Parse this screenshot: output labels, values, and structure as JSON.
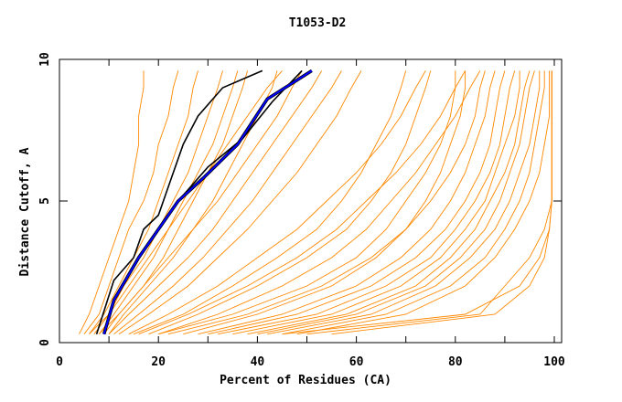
{
  "chart_data": {
    "type": "line",
    "title": "T1053-D2",
    "xlabel": "Percent of Residues (CA)",
    "ylabel": "Distance Cutoff, A",
    "xlim": [
      0,
      100
    ],
    "ylim": [
      0,
      10
    ],
    "x_ticks": [
      "0",
      "20",
      "40",
      "60",
      "80",
      "100"
    ],
    "y_ticks": [
      "0",
      "5",
      "10"
    ],
    "grid": false,
    "colors": {
      "other_models": "#ff8800",
      "highlight_black": "#000000",
      "highlight_blue": "#0000ff"
    },
    "y_levels": [
      0.3,
      1,
      2,
      3,
      4,
      5,
      6,
      7,
      8,
      9,
      9.6
    ],
    "orange_series_x": [
      [
        4,
        6,
        8,
        10,
        12,
        14,
        15,
        16,
        16,
        17,
        17
      ],
      [
        5,
        8,
        10,
        12,
        14,
        17,
        19,
        20,
        22,
        23,
        24
      ],
      [
        6,
        9,
        12,
        15,
        18,
        20,
        22,
        24,
        26,
        27,
        28
      ],
      [
        7,
        10,
        13,
        17,
        20,
        23,
        26,
        28,
        30,
        32,
        33
      ],
      [
        8,
        11,
        15,
        19,
        22,
        25,
        28,
        31,
        33,
        35,
        36
      ],
      [
        9,
        12,
        17,
        21,
        24,
        27,
        30,
        33,
        35,
        37,
        38
      ],
      [
        10,
        13,
        18,
        23,
        27,
        31,
        34,
        37,
        40,
        43,
        44
      ],
      [
        6,
        10,
        14,
        18,
        22,
        26,
        30,
        34,
        38,
        42,
        45
      ],
      [
        8,
        12,
        17,
        22,
        27,
        32,
        36,
        40,
        44,
        47,
        49
      ],
      [
        10,
        14,
        20,
        26,
        31,
        35,
        39,
        43,
        47,
        51,
        53
      ],
      [
        11,
        16,
        23,
        29,
        34,
        39,
        43,
        47,
        51,
        55,
        57
      ],
      [
        12,
        18,
        26,
        32,
        38,
        43,
        48,
        52,
        56,
        59,
        61
      ],
      [
        15,
        25,
        35,
        44,
        52,
        57,
        61,
        64,
        67,
        69,
        70
      ],
      [
        14,
        22,
        32,
        40,
        48,
        54,
        60,
        65,
        69,
        72,
        74
      ],
      [
        18,
        28,
        40,
        50,
        58,
        63,
        67,
        70,
        72,
        74,
        75
      ],
      [
        16,
        26,
        38,
        48,
        56,
        62,
        68,
        73,
        77,
        80,
        82
      ],
      [
        20,
        32,
        45,
        55,
        62,
        67,
        72,
        76,
        80,
        83,
        85
      ],
      [
        20,
        35,
        50,
        60,
        66,
        70,
        74,
        77,
        79,
        80,
        80
      ],
      [
        25,
        40,
        55,
        64,
        70,
        74,
        77,
        79,
        81,
        82,
        82
      ],
      [
        22,
        38,
        53,
        63,
        70,
        75,
        79,
        82,
        84,
        85,
        86
      ],
      [
        28,
        45,
        60,
        69,
        75,
        79,
        82,
        84,
        86,
        87,
        88
      ],
      [
        30,
        48,
        63,
        72,
        78,
        82,
        85,
        87,
        88,
        89,
        90
      ],
      [
        32,
        52,
        66,
        75,
        80,
        84,
        87,
        89,
        90,
        91,
        92
      ],
      [
        35,
        55,
        69,
        77,
        82,
        86,
        88,
        90,
        92,
        93,
        93
      ],
      [
        38,
        58,
        72,
        79,
        84,
        87,
        90,
        92,
        93,
        94,
        95
      ],
      [
        40,
        60,
        74,
        81,
        86,
        89,
        91,
        93,
        94,
        95,
        96
      ],
      [
        42,
        63,
        76,
        83,
        88,
        91,
        93,
        95,
        96,
        97,
        97
      ],
      [
        45,
        66,
        79,
        86,
        90,
        93,
        95,
        96,
        97,
        98,
        98
      ],
      [
        48,
        70,
        82,
        88,
        92,
        95,
        97,
        98,
        99,
        99,
        99
      ],
      [
        45,
        82,
        93,
        97,
        99,
        99.5,
        99.5,
        99.5,
        99.5,
        99.5,
        99.5
      ],
      [
        55,
        88,
        95,
        98,
        99,
        99.5,
        99.5,
        99.5,
        99.5,
        99.5,
        99.5
      ],
      [
        50,
        85,
        90,
        95,
        98,
        99.5,
        99.5,
        99.5,
        99.5,
        99.5,
        99.5
      ]
    ],
    "black_series": [
      [
        [
          7.5,
          0.3
        ],
        [
          11,
          2.2
        ],
        [
          15,
          3
        ],
        [
          17,
          4
        ],
        [
          20,
          4.5
        ],
        [
          22,
          5.5
        ],
        [
          25,
          7
        ],
        [
          28,
          8
        ],
        [
          33,
          9
        ],
        [
          41,
          9.6
        ]
      ],
      [
        [
          9,
          0.3
        ],
        [
          11,
          1.5
        ],
        [
          16,
          3
        ],
        [
          20,
          4
        ],
        [
          24,
          5
        ],
        [
          30,
          6.2
        ],
        [
          37,
          7.2
        ],
        [
          43,
          8.5
        ],
        [
          49,
          9.6
        ]
      ]
    ],
    "blue_series": [
      [
        9,
        0.3
      ],
      [
        11,
        1.5
      ],
      [
        16,
        3
      ],
      [
        20,
        4
      ],
      [
        24,
        5
      ],
      [
        29,
        5.8
      ],
      [
        36,
        7
      ],
      [
        42,
        8.6
      ],
      [
        51,
        9.6
      ]
    ]
  }
}
